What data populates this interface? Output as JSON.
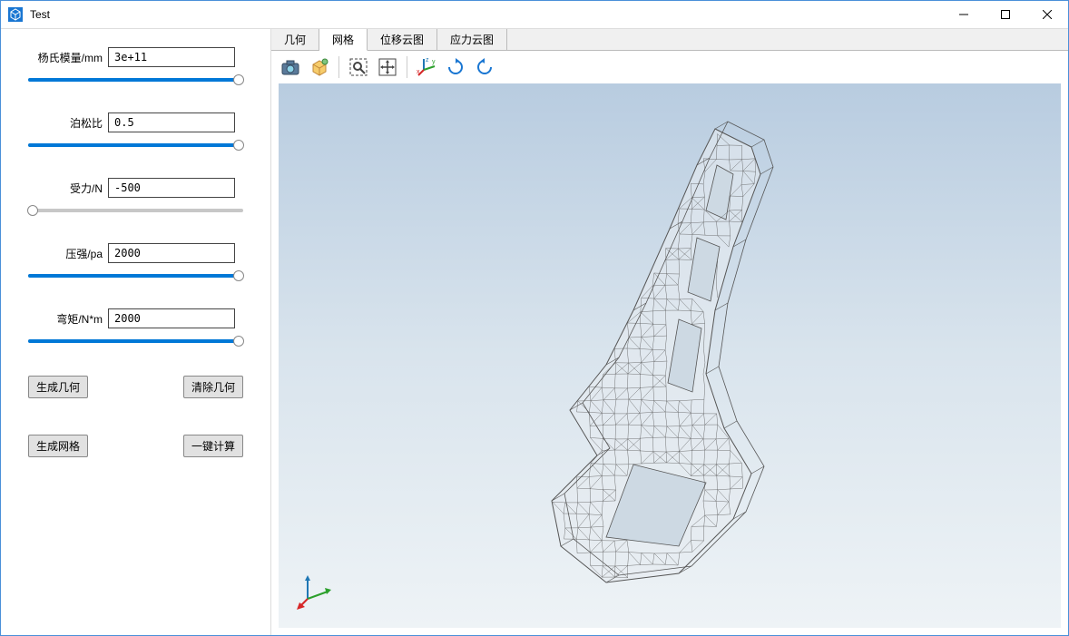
{
  "window": {
    "title": "Test"
  },
  "params": [
    {
      "label": "杨氏模量/mm",
      "value": "3e+11",
      "slider_pct": 98
    },
    {
      "label": "泊松比",
      "value": "0.5",
      "slider_pct": 98
    },
    {
      "label": "受力/N",
      "value": "-500",
      "slider_pct": 2
    },
    {
      "label": "压强/pa",
      "value": "2000",
      "slider_pct": 98
    },
    {
      "label": "弯矩/N*m",
      "value": "2000",
      "slider_pct": 98
    }
  ],
  "buttons": {
    "gen_geom": "生成几何",
    "clear_geom": "清除几何",
    "gen_mesh": "生成网格",
    "one_click_calc": "一键计算"
  },
  "tabs": [
    {
      "label": "几何",
      "active": false
    },
    {
      "label": "网格",
      "active": true
    },
    {
      "label": "位移云图",
      "active": false
    },
    {
      "label": "应力云图",
      "active": false
    }
  ],
  "toolbar_icons": [
    "camera-icon",
    "cube-icon",
    "sep",
    "zoom-box-icon",
    "fit-icon",
    "sep",
    "axes-icon",
    "rotate-cw-icon",
    "rotate-ccw-icon"
  ],
  "triad": {
    "x_color": "#d62728",
    "y_color": "#2ca02c",
    "z_color": "#1f77b4"
  },
  "mesh": {
    "stroke": "#555555",
    "stroke_width": 0.4,
    "background_gradient": [
      "#b8cce0",
      "#eef3f6"
    ]
  }
}
